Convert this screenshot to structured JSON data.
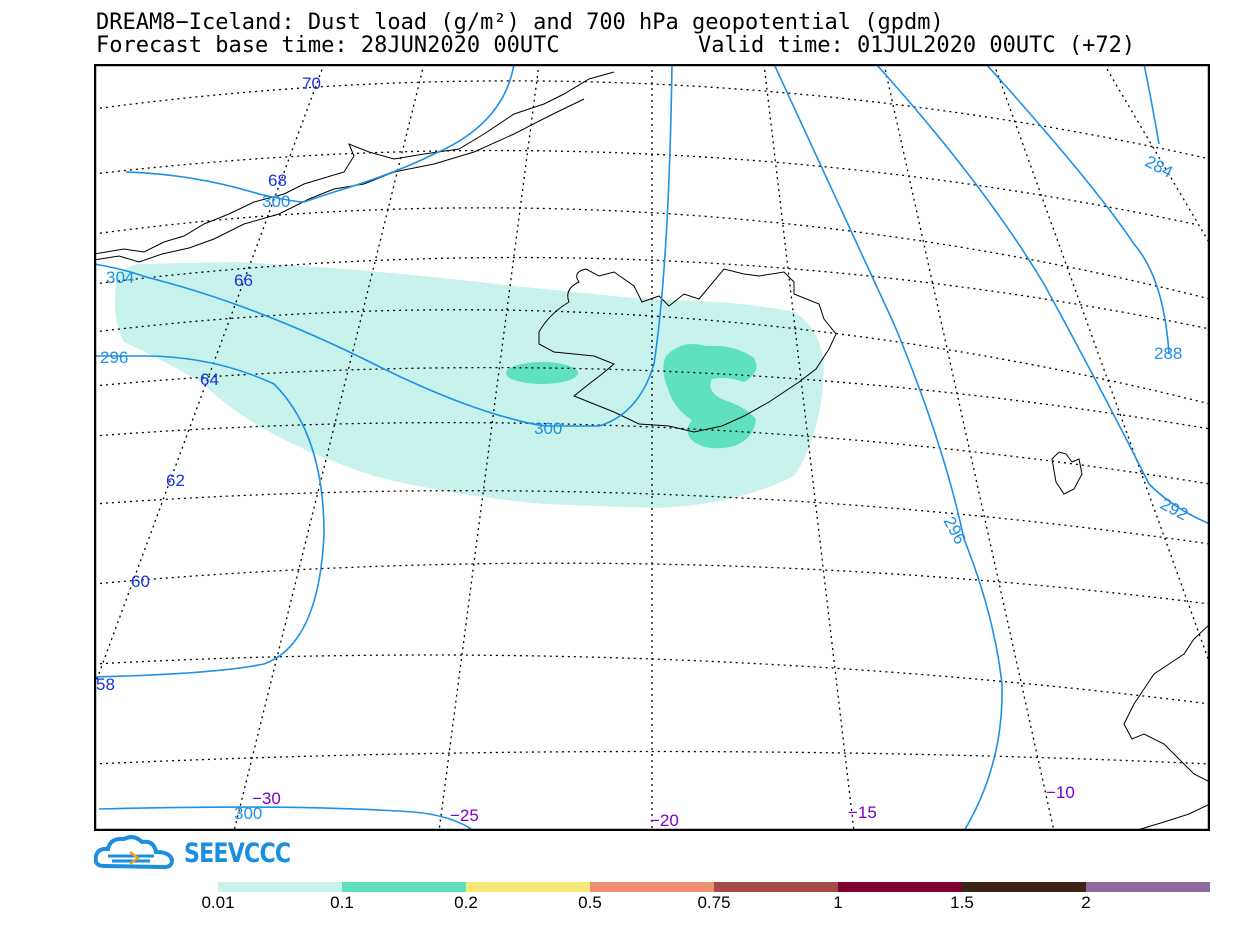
{
  "header": {
    "title": "DREAM8−Iceland: Dust load (g/m²) and 700 hPa geopotential (gpdm)",
    "base_time": "Forecast base time: 28JUN2020 00UTC",
    "valid_time": "Valid time: 01JUL2020 00UTC (+72)"
  },
  "map": {
    "lat_labels": [
      "70",
      "68",
      "66",
      "64",
      "62",
      "60",
      "58"
    ],
    "lon_labels": [
      "−30",
      "−25",
      "−20",
      "−15",
      "−10"
    ],
    "contour_labels": [
      "300",
      "304",
      "300",
      "296",
      "300",
      "296",
      "288",
      "284",
      "292",
      "300"
    ],
    "colors": {
      "contour": "#1e90e6",
      "lat_label": "#1a33e0",
      "lon_label": "#7a00c8",
      "dust_light": "#c8f2ec",
      "dust_mid": "#5fe0bf"
    }
  },
  "logo": {
    "text": "SEEVCCC",
    "icon": "cloud-icon"
  },
  "legend": {
    "colors": [
      "#c8f2ec",
      "#5fe0bf",
      "#f8e878",
      "#ee9070",
      "#a84a48",
      "#800030",
      "#3a2418",
      "#8c6aa0"
    ],
    "ticks": [
      "0.01",
      "0.1",
      "0.2",
      "0.5",
      "0.75",
      "1",
      "1.5",
      "2"
    ]
  }
}
